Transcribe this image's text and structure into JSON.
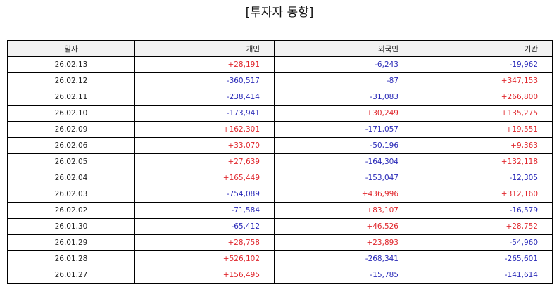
{
  "title": "[투자자 동향]",
  "colors": {
    "positive": "#e0282e",
    "negative": "#2a2ab8",
    "header_bg": "#f2f2f2"
  },
  "table": {
    "headers": [
      "일자",
      "개인",
      "외국인",
      "기관"
    ],
    "rows": [
      {
        "date": "26.02.13",
        "individual": "+28,191",
        "foreign": "-6,243",
        "institution": "-19,962"
      },
      {
        "date": "26.02.12",
        "individual": "-360,517",
        "foreign": "-87",
        "institution": "+347,153"
      },
      {
        "date": "26.02.11",
        "individual": "-238,414",
        "foreign": "-31,083",
        "institution": "+266,800"
      },
      {
        "date": "26.02.10",
        "individual": "-173,941",
        "foreign": "+30,249",
        "institution": "+135,275"
      },
      {
        "date": "26.02.09",
        "individual": "+162,301",
        "foreign": "-171,057",
        "institution": "+19,551"
      },
      {
        "date": "26.02.06",
        "individual": "+33,070",
        "foreign": "-50,196",
        "institution": "+9,363"
      },
      {
        "date": "26.02.05",
        "individual": "+27,639",
        "foreign": "-164,304",
        "institution": "+132,118"
      },
      {
        "date": "26.02.04",
        "individual": "+165,449",
        "foreign": "-153,047",
        "institution": "-12,305"
      },
      {
        "date": "26.02.03",
        "individual": "-754,089",
        "foreign": "+436,996",
        "institution": "+312,160"
      },
      {
        "date": "26.02.02",
        "individual": "-71,584",
        "foreign": "+83,107",
        "institution": "-16,579"
      },
      {
        "date": "26.01.30",
        "individual": "-65,412",
        "foreign": "+46,526",
        "institution": "+28,752"
      },
      {
        "date": "26.01.29",
        "individual": "+28,758",
        "foreign": "+23,893",
        "institution": "-54,960"
      },
      {
        "date": "26.01.28",
        "individual": "+526,102",
        "foreign": "-268,341",
        "institution": "-265,601"
      },
      {
        "date": "26.01.27",
        "individual": "+156,495",
        "foreign": "-15,785",
        "institution": "-141,614"
      }
    ]
  }
}
